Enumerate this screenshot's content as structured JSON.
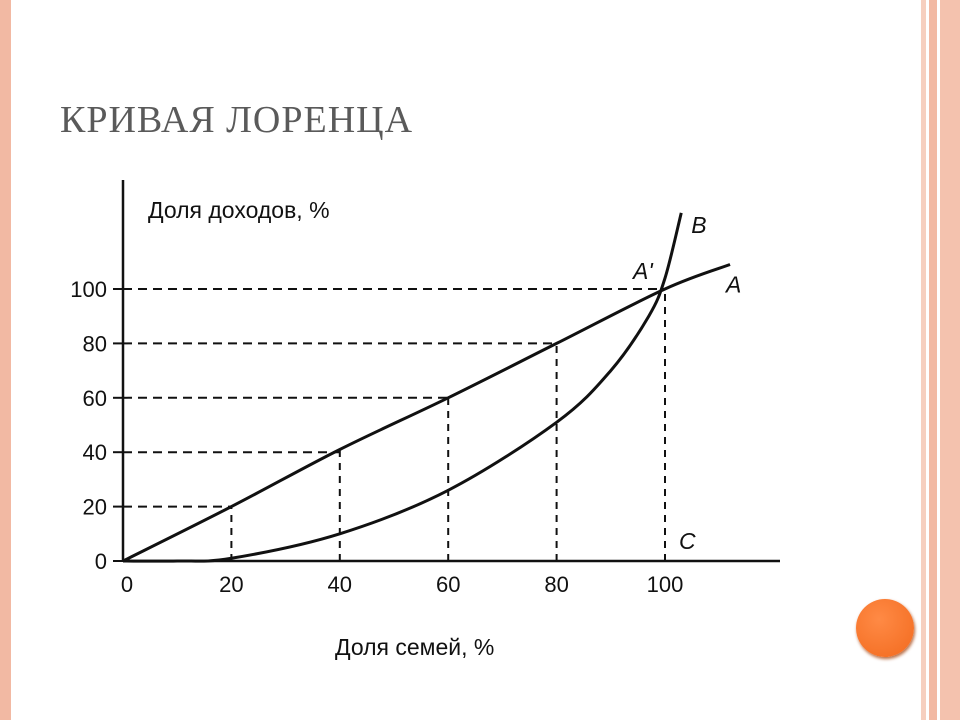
{
  "slide": {
    "title": "КРИВАЯ ЛОРЕНЦА",
    "accent_color": "#f2b9a3",
    "title_color": "#5a5a5a",
    "button_color": "#f5742b"
  },
  "chart_data": {
    "type": "line",
    "ylabel": "Доля доходов, %",
    "xlabel": "Доля семей, %",
    "x_ticks": [
      0,
      20,
      40,
      60,
      80,
      100
    ],
    "y_ticks": [
      0,
      20,
      40,
      60,
      80,
      100
    ],
    "x_tick_labels": [
      "0",
      "20",
      "40",
      "60",
      "80",
      "100"
    ],
    "y_tick_labels": [
      "0",
      "20",
      "40",
      "60",
      "80",
      "100"
    ],
    "xlim": [
      0,
      120
    ],
    "ylim": [
      0,
      130
    ],
    "grid": false,
    "series": [
      {
        "name": "A",
        "x": [
          0,
          20,
          40,
          60,
          80,
          100,
          112
        ],
        "y": [
          0,
          20,
          41,
          60,
          80,
          100,
          109
        ]
      },
      {
        "name": "B",
        "x": [
          0,
          10,
          20,
          40,
          60,
          80,
          90,
          97,
          100,
          103
        ],
        "y": [
          0,
          0,
          1,
          10,
          26,
          51,
          70,
          90,
          104,
          128
        ]
      }
    ],
    "points": [
      {
        "label": "A'",
        "x": 100,
        "y": 100
      },
      {
        "label": "C",
        "x": 100,
        "y": 0
      }
    ]
  }
}
